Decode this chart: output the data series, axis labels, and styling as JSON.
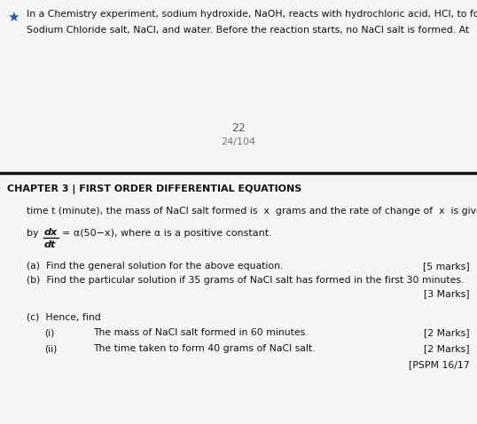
{
  "top_bg": "#e8e8e8",
  "bot_bg": "#f5f5f5",
  "divider_color": "#111111",
  "icon_color": "#1a52cc",
  "top_text_line1": "In a Chemistry experiment, sodium hydroxide, NaOH, reacts with hydrochloric acid, HCl, to form",
  "top_text_line2": "Sodium Chloride salt, NaCl, and water. Before the reaction starts, no NaCl salt is formed. At",
  "page_number": "22",
  "page_fraction": "24/104",
  "chapter_header": "CHAPTER 3 | FIRST ORDER DIFFERENTIAL EQUATIONS",
  "body_line1": "time t (minute), the mass of NaCl salt formed is  x  grams and the rate of change of  x  is given",
  "by_label": "by",
  "frac_num": "dx",
  "frac_den": "dt",
  "equals_rest": "= α(50−x), where α is a positive constant.",
  "part_a_text": "(a)  Find the general solution for the above equation.",
  "part_a_marks": "[5 marks]",
  "part_b_text": "(b)  Find the particular solution if 35 grams of NaCl salt has formed in the first 30 minutes.",
  "part_b_marks": "[3 Marks]",
  "part_c_intro": "(c)  Hence, find",
  "ci_label": "(i)",
  "ci_text": "The mass of NaCl salt formed in 60 minutes.",
  "ci_marks": "[2 Marks]",
  "cii_label": "(ii)",
  "cii_text": "The time taken to form 40 grams of NaCl salt.",
  "cii_marks": "[2 Marks]",
  "pspm": "[PSPM 16/17"
}
